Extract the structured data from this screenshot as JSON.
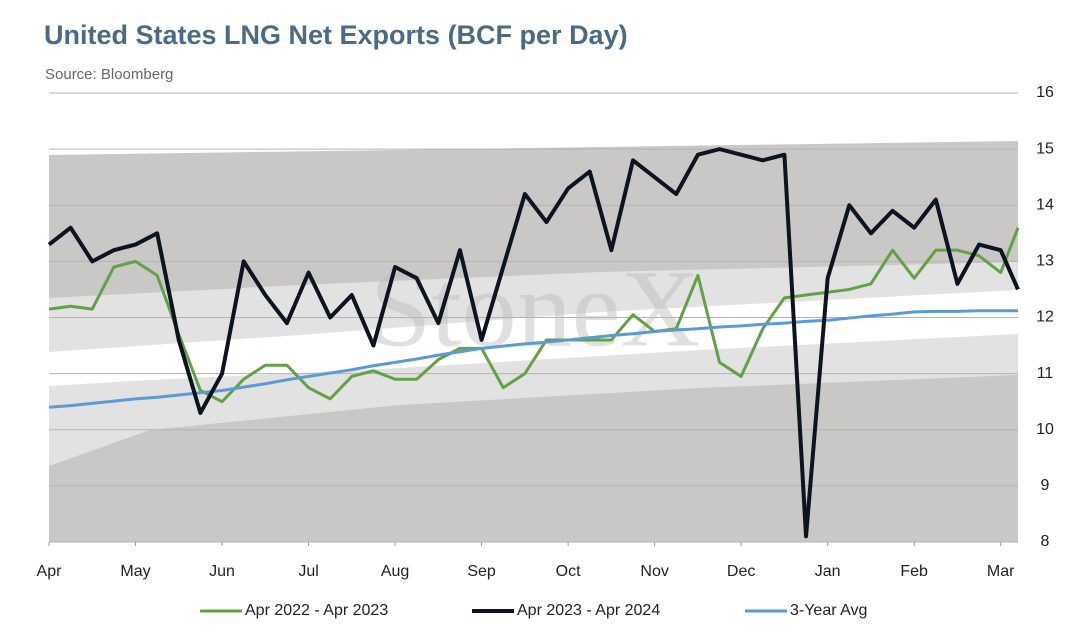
{
  "chart_data": {
    "type": "line",
    "title": "United States LNG Net Exports (BCF per Day)",
    "subtitle": "Source: Bloomberg",
    "watermark": "StoneX",
    "x": [
      0,
      0.25,
      0.5,
      0.75,
      1,
      1.25,
      1.5,
      1.75,
      2,
      2.25,
      2.5,
      2.75,
      3,
      3.25,
      3.5,
      3.75,
      4,
      4.25,
      4.5,
      4.75,
      5,
      5.25,
      5.5,
      5.75,
      6,
      6.25,
      6.5,
      6.75,
      7,
      7.25,
      7.5,
      7.75,
      8,
      8.25,
      8.5,
      8.75,
      9,
      9.25,
      9.5,
      9.75,
      10,
      10.25,
      10.5,
      10.75,
      11,
      11.2
    ],
    "xlim": [
      0,
      11.2
    ],
    "xticks": [
      {
        "value": 0,
        "label": "Apr"
      },
      {
        "value": 1,
        "label": "May"
      },
      {
        "value": 2,
        "label": "Jun"
      },
      {
        "value": 3,
        "label": "Jul"
      },
      {
        "value": 4,
        "label": "Aug"
      },
      {
        "value": 5,
        "label": "Sep"
      },
      {
        "value": 6,
        "label": "Oct"
      },
      {
        "value": 7,
        "label": "Nov"
      },
      {
        "value": 8,
        "label": "Dec"
      },
      {
        "value": 9,
        "label": "Jan"
      },
      {
        "value": 10,
        "label": "Feb"
      },
      {
        "value": 11,
        "label": "Mar"
      }
    ],
    "ylim": [
      8,
      16
    ],
    "yticks": [
      8,
      9,
      10,
      11,
      12,
      13,
      14,
      15,
      16
    ],
    "grid": true,
    "legend": "bottom",
    "series": [
      {
        "name": "Apr 2022 - Apr 2023",
        "color": "#62a244",
        "width": 3,
        "values": [
          12.15,
          12.2,
          12.15,
          12.9,
          13.0,
          12.75,
          11.7,
          10.7,
          10.5,
          10.9,
          11.15,
          11.15,
          10.75,
          10.55,
          10.95,
          11.05,
          10.9,
          10.9,
          11.25,
          11.45,
          11.45,
          10.75,
          11.0,
          11.6,
          11.6,
          11.6,
          11.6,
          12.05,
          11.75,
          11.8,
          12.75,
          11.2,
          10.95,
          11.8,
          12.35,
          12.4,
          12.45,
          12.5,
          12.6,
          13.2,
          12.7,
          13.2,
          13.2,
          13.1,
          12.8,
          13.6
        ]
      },
      {
        "name": "Apr 2023 - Apr 2024",
        "color": "#0d1420",
        "width": 4,
        "values": [
          13.3,
          13.6,
          13.0,
          13.2,
          13.3,
          13.5,
          11.6,
          10.3,
          11.0,
          13.0,
          12.4,
          11.9,
          12.8,
          12.0,
          12.4,
          11.5,
          12.9,
          12.7,
          11.9,
          13.2,
          11.6,
          12.9,
          14.2,
          13.7,
          14.3,
          14.6,
          13.2,
          14.8,
          14.5,
          14.2,
          14.9,
          15.0,
          14.9,
          14.8,
          14.9,
          8.1,
          12.7,
          14.0,
          13.5,
          13.9,
          13.6,
          14.1,
          12.6,
          13.3,
          13.2,
          12.5
        ]
      },
      {
        "name": "3-Year Avg",
        "color": "#5b9bd5",
        "width": 3,
        "values": [
          10.4,
          10.43,
          10.47,
          10.51,
          10.55,
          10.58,
          10.62,
          10.66,
          10.7,
          10.76,
          10.82,
          10.89,
          10.95,
          11.01,
          11.07,
          11.14,
          11.2,
          11.26,
          11.33,
          11.39,
          11.45,
          11.49,
          11.53,
          11.56,
          11.6,
          11.64,
          11.68,
          11.71,
          11.75,
          11.78,
          11.8,
          11.83,
          11.85,
          11.88,
          11.9,
          11.93,
          11.95,
          11.99,
          12.03,
          12.06,
          12.1,
          12.11,
          12.11,
          12.12,
          12.12,
          12.12
        ]
      }
    ]
  }
}
